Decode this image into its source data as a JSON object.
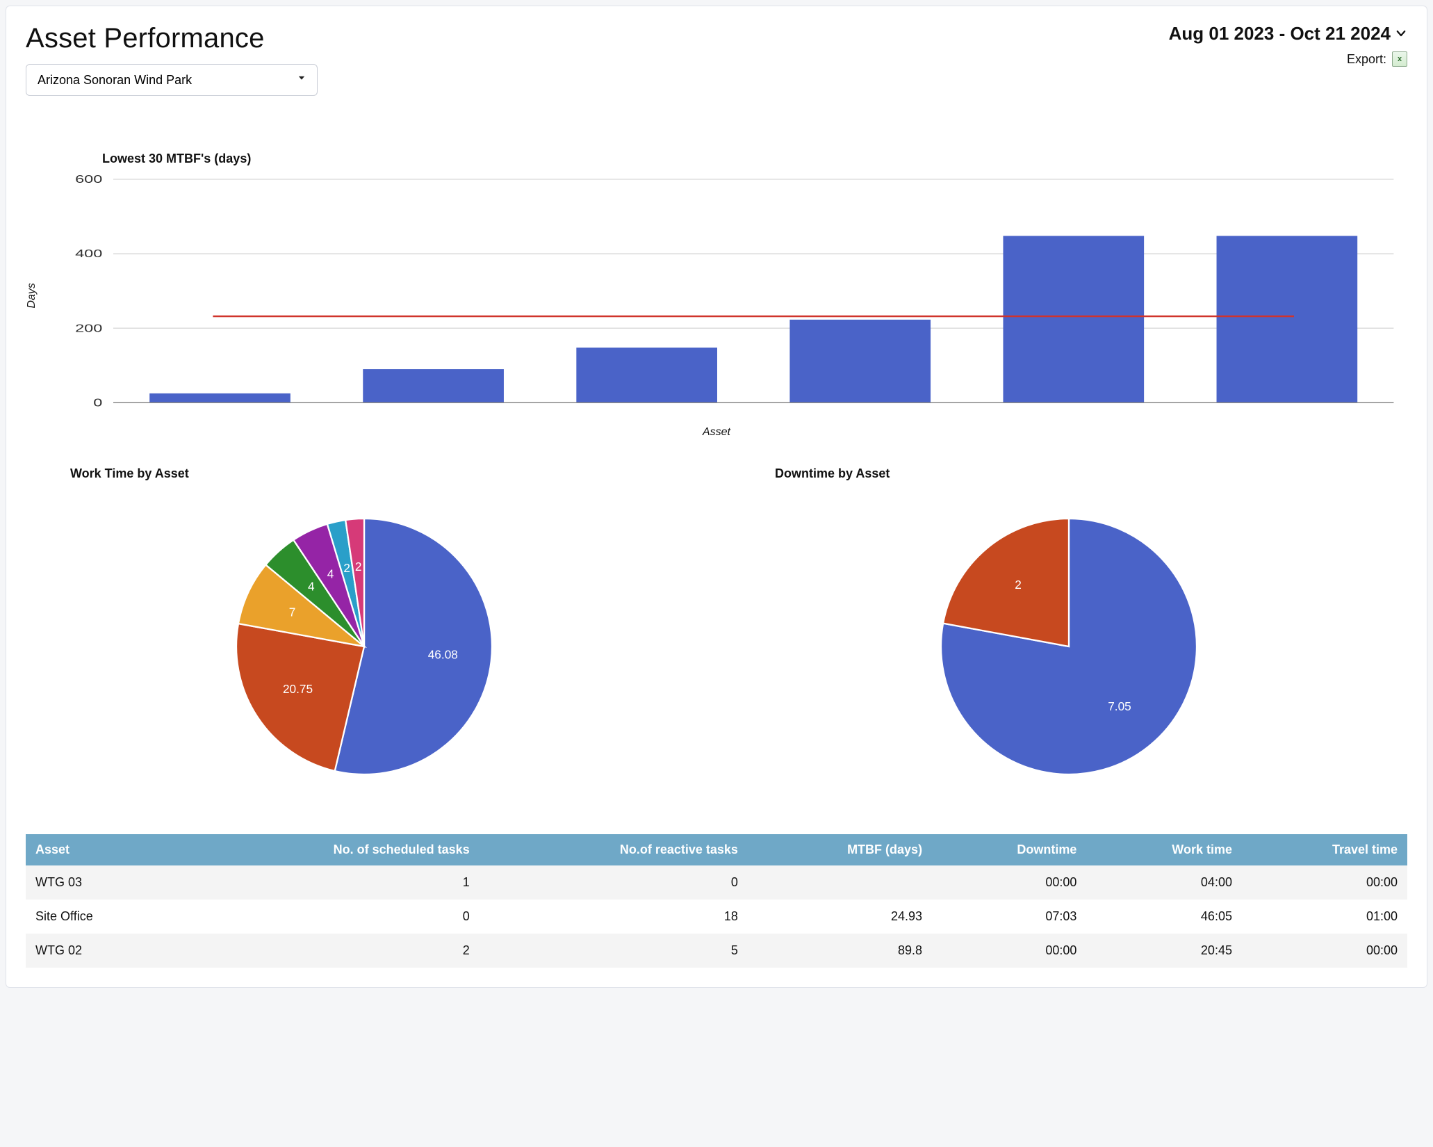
{
  "header": {
    "title": "Asset Performance",
    "site_select": {
      "selected": "Arizona Sonoran Wind Park"
    },
    "date_range": "Aug 01 2023 - Oct 21 2024",
    "export": {
      "label": "Export:"
    }
  },
  "colors": {
    "bar": "#4a63c8",
    "axis": "#888888",
    "grid": "#d6d6d6",
    "ref_line": "#d0342c",
    "table_header_bg": "#6fa8c7",
    "table_header_fg": "#ffffff",
    "row_odd": "#f4f4f4",
    "row_even": "#ffffff"
  },
  "bar_chart": {
    "title": "Lowest 30 MTBF's (days)",
    "type": "bar",
    "x_label": "Asset",
    "y_label": "Days",
    "ylim": [
      0,
      600
    ],
    "ytick_step": 200,
    "values": [
      25,
      90,
      148,
      223,
      448,
      448
    ],
    "bar_width_ratio": 0.66,
    "reference_line": 232,
    "reference_color": "#d0342c",
    "bar_color": "#4a63c8",
    "grid_color": "#d6d6d6",
    "axis_color": "#888888",
    "tick_font_size": 12,
    "background": "#ffffff"
  },
  "pie_work_time": {
    "title": "Work Time by Asset",
    "type": "pie",
    "start_angle_deg": -90,
    "stroke": "#ffffff",
    "stroke_width": 2,
    "label_color": "#ffffff",
    "label_font_size": 15,
    "slices": [
      {
        "value": 46.08,
        "label": "46.08",
        "color": "#4a63c8"
      },
      {
        "value": 20.75,
        "label": "20.75",
        "color": "#c7491f"
      },
      {
        "value": 7,
        "label": "7",
        "color": "#eaa12b"
      },
      {
        "value": 4,
        "label": "4",
        "color": "#2c8e2c"
      },
      {
        "value": 4,
        "label": "4",
        "color": "#9524a6"
      },
      {
        "value": 2,
        "label": "2",
        "color": "#2a9fc9"
      },
      {
        "value": 2,
        "label": "2",
        "color": "#d63a78"
      }
    ]
  },
  "pie_downtime": {
    "title": "Downtime by Asset",
    "type": "pie",
    "start_angle_deg": -90,
    "stroke": "#ffffff",
    "stroke_width": 2,
    "label_color": "#ffffff",
    "label_font_size": 15,
    "slices": [
      {
        "value": 7.05,
        "label": "7.05",
        "color": "#4a63c8"
      },
      {
        "value": 2,
        "label": "2",
        "color": "#c7491f"
      }
    ]
  },
  "table": {
    "columns": [
      "Asset",
      "No. of scheduled tasks",
      "No.of reactive tasks",
      "MTBF (days)",
      "Downtime",
      "Work time",
      "Travel time"
    ],
    "rows": [
      [
        "WTG 03",
        "1",
        "0",
        "",
        "00:00",
        "04:00",
        "00:00"
      ],
      [
        "Site Office",
        "0",
        "18",
        "24.93",
        "07:03",
        "46:05",
        "01:00"
      ],
      [
        "WTG 02",
        "2",
        "5",
        "89.8",
        "00:00",
        "20:45",
        "00:00"
      ]
    ]
  }
}
